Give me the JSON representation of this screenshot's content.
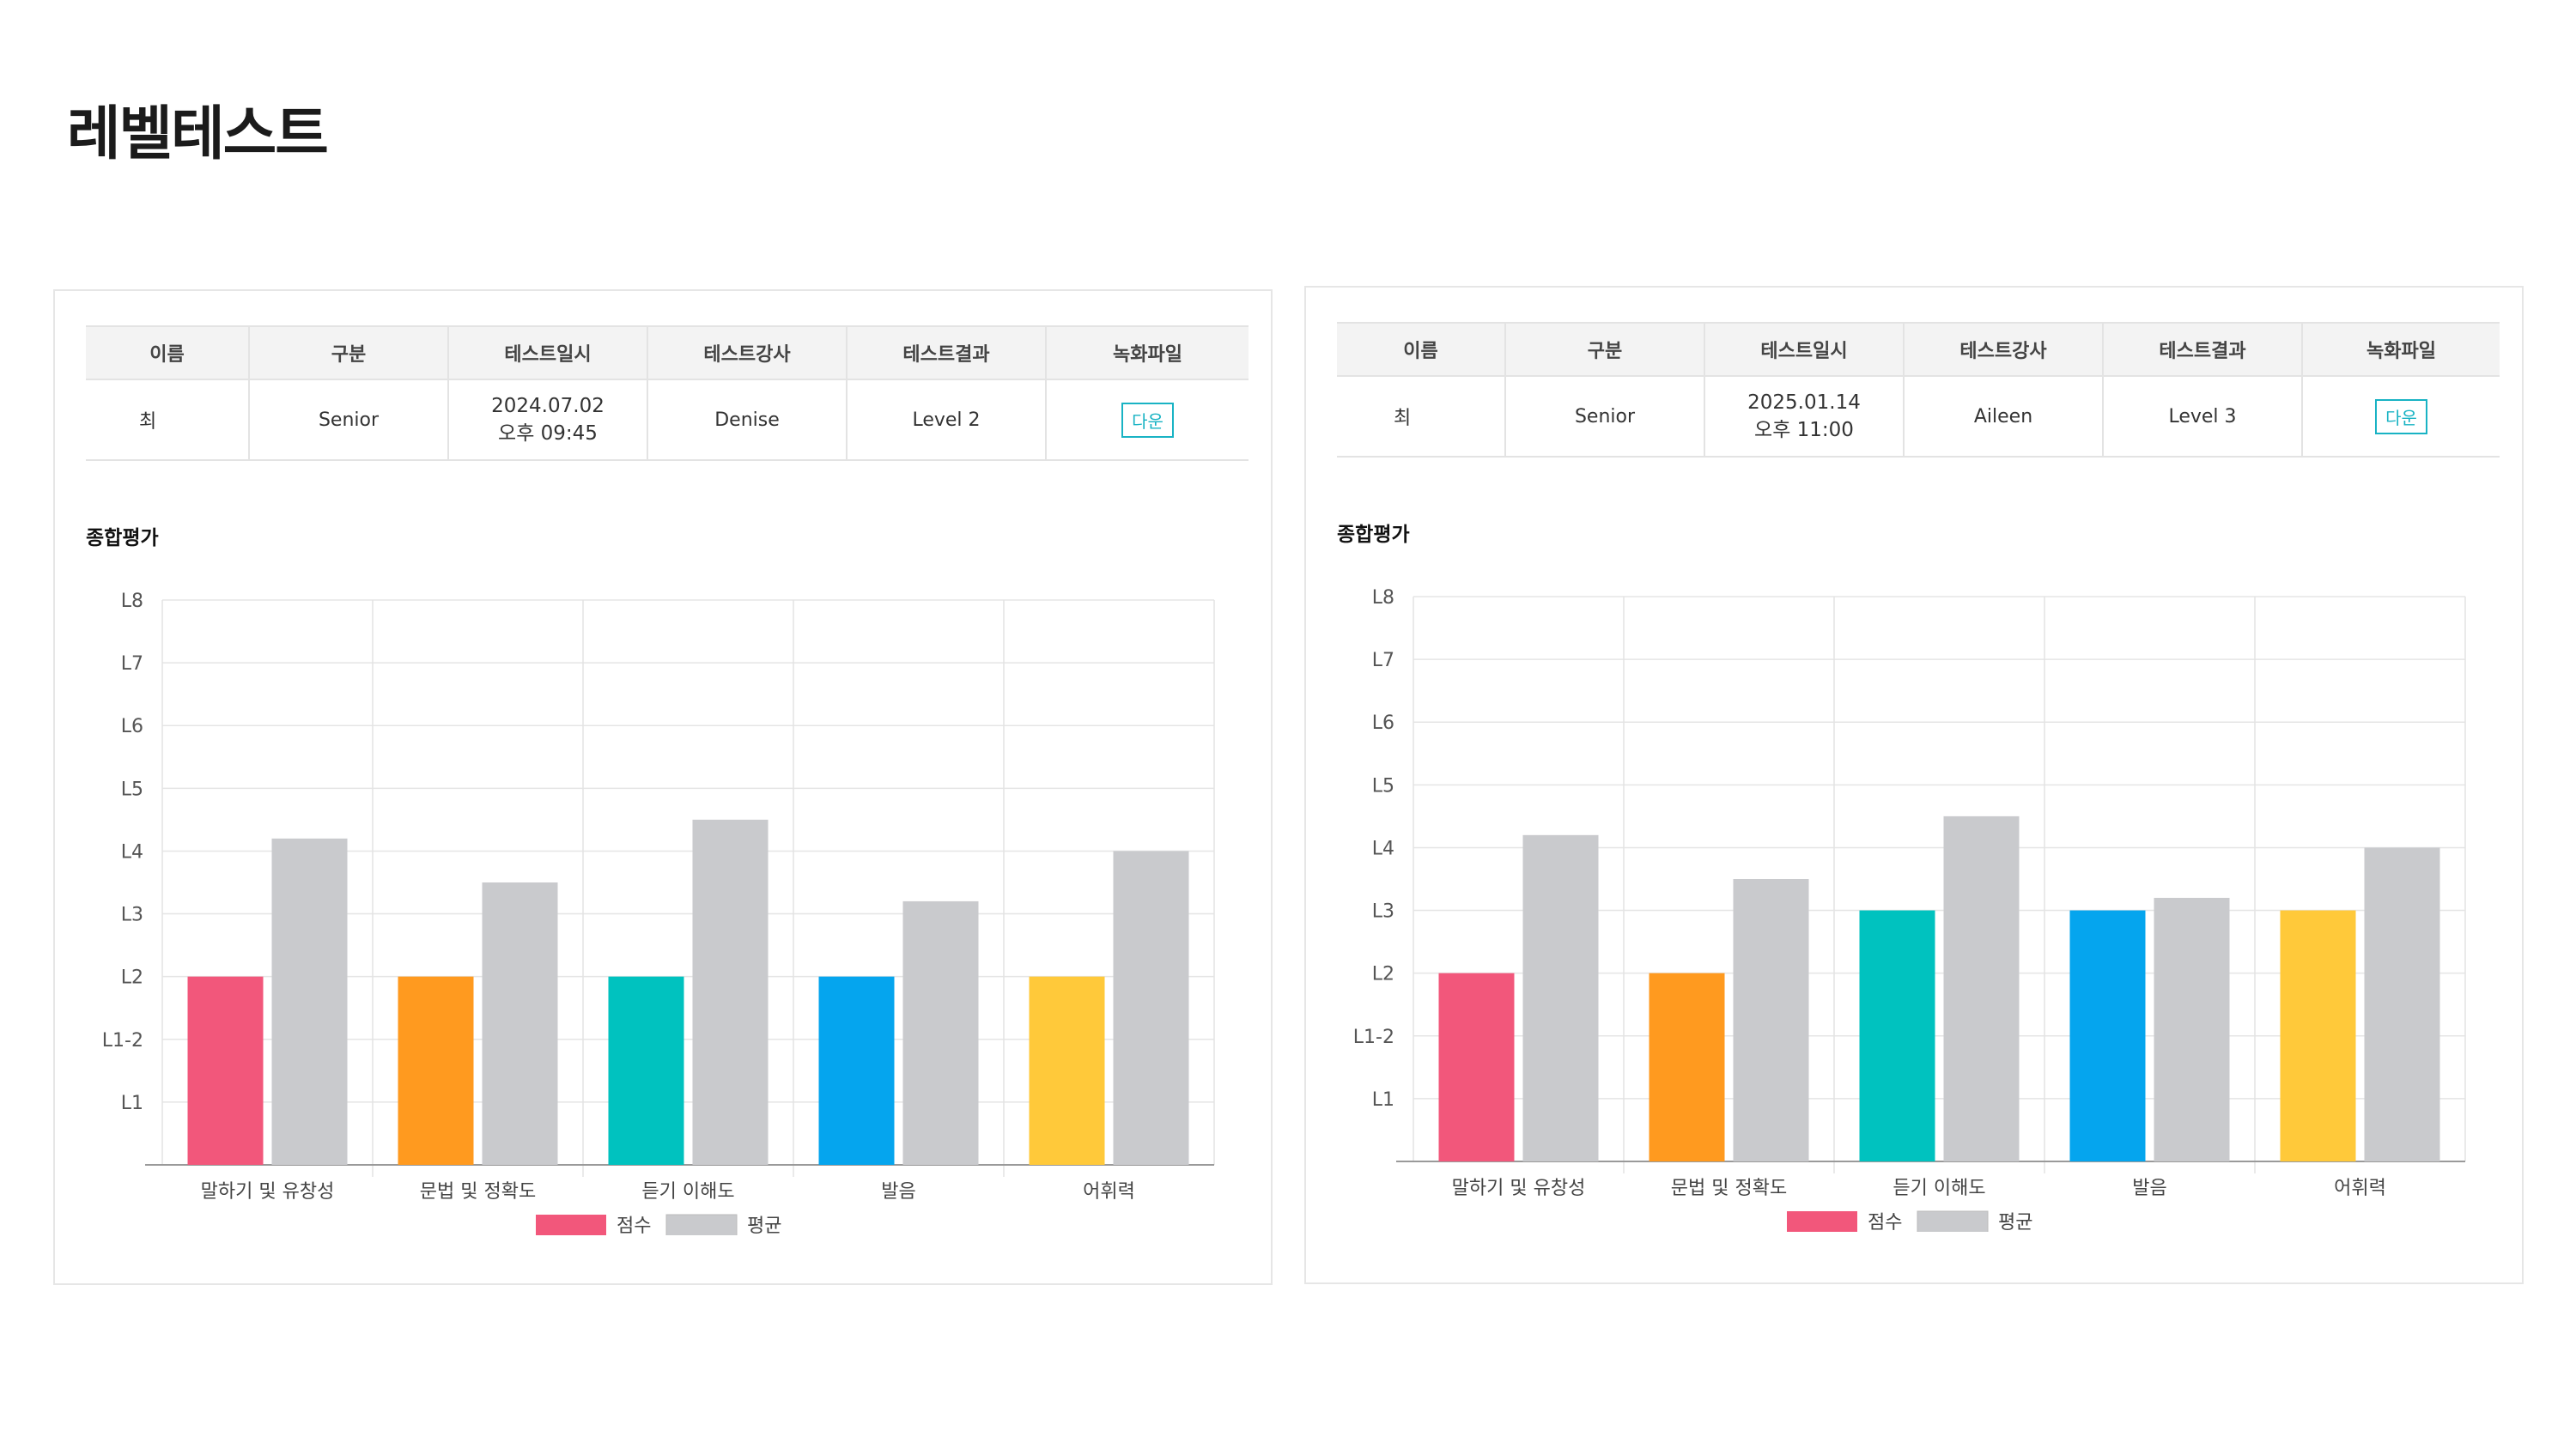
{
  "page": {
    "title": "레벨테스트"
  },
  "table_headers": [
    "이름",
    "구분",
    "테스트일시",
    "테스트강사",
    "테스트결과",
    "녹화파일"
  ],
  "records": [
    {
      "name": "최",
      "category": "Senior",
      "test_date": "2024.07.02",
      "test_time": "오후 09:45",
      "teacher": "Denise",
      "result": "Level 2",
      "file_button": "다운"
    },
    {
      "name": "최",
      "category": "Senior",
      "test_date": "2025.01.14",
      "test_time": "오후 11:00",
      "teacher": "Aileen",
      "result": "Level 3",
      "file_button": "다운"
    }
  ],
  "chart_section_title": "종합평가",
  "chart_data": [
    {
      "type": "bar",
      "title": "",
      "categories": [
        "말하기 및 유창성",
        "문법 및 정확도",
        "듣기 이해도",
        "발음",
        "어휘력"
      ],
      "y_ticks": [
        "L1",
        "L1-2",
        "L2",
        "L3",
        "L4",
        "L5",
        "L6",
        "L7",
        "L8"
      ],
      "ylim": [
        0,
        9
      ],
      "grid": true,
      "legend": "bottom",
      "series": [
        {
          "name": "점수",
          "values": [
            3,
            3,
            3,
            3,
            3
          ],
          "colors": [
            "#f2577b",
            "#ff9a1f",
            "#00c2bf",
            "#05a5ee",
            "#ffc93a"
          ]
        },
        {
          "name": "평균",
          "values": [
            5.2,
            4.5,
            5.5,
            4.2,
            5.0
          ],
          "colors": [
            "#c9cacd",
            "#c9cacd",
            "#c9cacd",
            "#c9cacd",
            "#c9cacd"
          ]
        }
      ]
    },
    {
      "type": "bar",
      "title": "",
      "categories": [
        "말하기 및 유창성",
        "문법 및 정확도",
        "듣기 이해도",
        "발음",
        "어휘력"
      ],
      "y_ticks": [
        "L1",
        "L1-2",
        "L2",
        "L3",
        "L4",
        "L5",
        "L6",
        "L7",
        "L8"
      ],
      "ylim": [
        0,
        9
      ],
      "grid": true,
      "legend": "bottom",
      "series": [
        {
          "name": "점수",
          "values": [
            3,
            3,
            4,
            4,
            4
          ],
          "colors": [
            "#f2577b",
            "#ff9a1f",
            "#00c2bf",
            "#05a5ee",
            "#ffc93a"
          ]
        },
        {
          "name": "평균",
          "values": [
            5.2,
            4.5,
            5.5,
            4.2,
            5.0
          ],
          "colors": [
            "#c9cacd",
            "#c9cacd",
            "#c9cacd",
            "#c9cacd",
            "#c9cacd"
          ]
        }
      ]
    }
  ]
}
